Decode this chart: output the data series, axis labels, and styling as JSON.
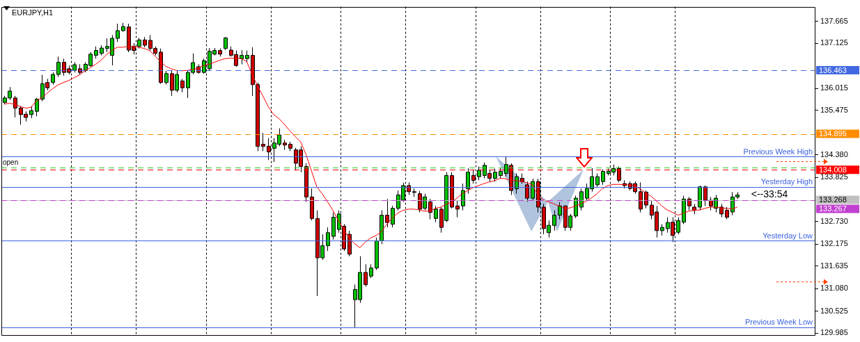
{
  "chart_data": {
    "type": "candlestick",
    "title": "EURJPY,H1",
    "categories": [
      null,
      null,
      null,
      null,
      null,
      null,
      null,
      null,
      null,
      null,
      null,
      null,
      null,
      null,
      null,
      null,
      null,
      null,
      null,
      null,
      null,
      null,
      null,
      null,
      null,
      null,
      null,
      null,
      null,
      null,
      null,
      null,
      null,
      null,
      null,
      null,
      null,
      null,
      null,
      null,
      null,
      null,
      null,
      null,
      null,
      null,
      null,
      null,
      null,
      null,
      null,
      null,
      null,
      null,
      null,
      null,
      null,
      null,
      null,
      null,
      null,
      null,
      null,
      null,
      null,
      null,
      null,
      null,
      null,
      null,
      null,
      null,
      null,
      null,
      null,
      null,
      null,
      null,
      null,
      null,
      null,
      null,
      null,
      null,
      null,
      null,
      null,
      null,
      null,
      null,
      null,
      null,
      null,
      null,
      null,
      null,
      null,
      null,
      null,
      null,
      null,
      null,
      null,
      null,
      null,
      null,
      null,
      null,
      null,
      null,
      null,
      null,
      null,
      null,
      null,
      null,
      null,
      null,
      null,
      null,
      null,
      null,
      null,
      null,
      null,
      null,
      null,
      null,
      null,
      null,
      null,
      null,
      null,
      null,
      null,
      null,
      null
    ],
    "ohlc": [
      [
        135.67,
        135.83,
        135.62,
        135.78
      ],
      [
        135.78,
        136.05,
        135.73,
        135.95
      ],
      [
        135.78,
        135.83,
        135.3,
        135.53
      ],
      [
        135.53,
        135.58,
        135.12,
        135.37
      ],
      [
        135.38,
        135.45,
        135.2,
        135.3
      ],
      [
        135.37,
        135.58,
        135.28,
        135.47
      ],
      [
        135.45,
        135.78,
        135.33,
        135.75
      ],
      [
        135.75,
        136.35,
        135.7,
        136.13
      ],
      [
        136.16,
        136.25,
        135.97,
        136.03
      ],
      [
        136.16,
        136.41,
        136.11,
        136.36
      ],
      [
        136.36,
        136.8,
        136.3,
        136.66
      ],
      [
        136.66,
        136.75,
        136.33,
        136.41
      ],
      [
        136.5,
        136.58,
        136.36,
        136.41
      ],
      [
        136.46,
        136.66,
        136.41,
        136.6
      ],
      [
        136.5,
        136.61,
        136.36,
        136.41
      ],
      [
        136.46,
        136.66,
        136.41,
        136.61
      ],
      [
        136.58,
        136.91,
        136.55,
        136.86
      ],
      [
        136.83,
        137.05,
        136.75,
        136.95
      ],
      [
        136.88,
        137.08,
        136.83,
        137.01
      ],
      [
        137.0,
        137.25,
        136.91,
        137.05
      ],
      [
        136.83,
        137.33,
        136.58,
        137.25
      ],
      [
        137.25,
        137.61,
        137.16,
        137.44
      ],
      [
        137.44,
        137.63,
        137.41,
        137.54
      ],
      [
        137.53,
        137.61,
        136.91,
        136.96
      ],
      [
        137.05,
        137.13,
        136.85,
        136.95
      ],
      [
        137.05,
        137.26,
        137.0,
        137.21
      ],
      [
        137.21,
        137.28,
        137.03,
        137.08
      ],
      [
        137.2,
        137.33,
        136.95,
        137.0
      ],
      [
        137.0,
        137.05,
        136.83,
        136.88
      ],
      [
        136.91,
        137.0,
        136.13,
        136.16
      ],
      [
        136.16,
        136.45,
        136.11,
        136.38
      ],
      [
        136.38,
        136.45,
        135.83,
        135.97
      ],
      [
        135.97,
        136.46,
        135.92,
        136.36
      ],
      [
        136.2,
        136.25,
        135.92,
        136.03
      ],
      [
        136.03,
        136.46,
        135.78,
        136.41
      ],
      [
        136.41,
        136.88,
        136.36,
        136.65
      ],
      [
        136.55,
        136.61,
        136.38,
        136.41
      ],
      [
        136.41,
        136.75,
        136.38,
        136.7
      ],
      [
        136.5,
        137.01,
        136.45,
        136.93
      ],
      [
        136.86,
        137.01,
        136.83,
        136.95
      ],
      [
        136.95,
        137.0,
        136.8,
        136.86
      ],
      [
        137.0,
        137.28,
        136.96,
        137.26
      ],
      [
        136.96,
        137.05,
        136.8,
        136.83
      ],
      [
        136.85,
        136.95,
        136.55,
        136.58
      ],
      [
        136.75,
        136.96,
        136.61,
        136.83
      ],
      [
        136.75,
        136.95,
        136.66,
        136.83
      ],
      [
        136.83,
        137.03,
        135.83,
        136.11
      ],
      [
        136.11,
        136.16,
        134.47,
        134.59
      ],
      [
        134.64,
        134.92,
        134.47,
        134.59
      ],
      [
        134.59,
        134.79,
        134.25,
        134.45
      ],
      [
        134.54,
        134.79,
        134.2,
        134.67
      ],
      [
        134.64,
        135.03,
        134.59,
        134.87
      ],
      [
        134.67,
        134.75,
        134.5,
        134.62
      ],
      [
        134.64,
        134.7,
        134.47,
        134.54
      ],
      [
        134.5,
        134.55,
        134.0,
        134.17
      ],
      [
        134.5,
        134.59,
        133.95,
        134.09
      ],
      [
        134.09,
        134.17,
        133.22,
        133.34
      ],
      [
        133.34,
        133.55,
        132.76,
        132.81
      ],
      [
        132.81,
        133.01,
        130.9,
        131.84
      ],
      [
        131.84,
        132.42,
        131.79,
        132.14
      ],
      [
        132.14,
        132.59,
        132.01,
        132.46
      ],
      [
        132.37,
        132.96,
        132.29,
        132.84
      ],
      [
        132.54,
        133.01,
        132.46,
        132.92
      ],
      [
        132.62,
        132.67,
        132.01,
        132.06
      ],
      [
        132.42,
        132.51,
        131.88,
        131.93
      ],
      [
        130.81,
        131.18,
        130.13,
        131.06
      ],
      [
        130.81,
        131.88,
        130.73,
        131.48
      ],
      [
        131.48,
        131.68,
        131.13,
        131.18
      ],
      [
        131.39,
        131.68,
        131.34,
        131.59
      ],
      [
        131.59,
        132.34,
        131.54,
        132.26
      ],
      [
        132.26,
        133.01,
        132.18,
        132.89
      ],
      [
        132.89,
        133.29,
        132.59,
        132.71
      ],
      [
        132.67,
        133.12,
        132.59,
        133.06
      ],
      [
        133.06,
        133.5,
        133.01,
        133.39
      ],
      [
        133.26,
        133.69,
        133.22,
        133.62
      ],
      [
        133.62,
        133.7,
        133.39,
        133.47
      ],
      [
        133.47,
        133.55,
        133.34,
        133.46
      ],
      [
        133.42,
        133.49,
        132.96,
        133.04
      ],
      [
        133.06,
        133.42,
        133.01,
        133.34
      ],
      [
        133.22,
        133.29,
        132.79,
        132.96
      ],
      [
        132.81,
        133.12,
        132.72,
        133.04
      ],
      [
        133.04,
        133.09,
        132.46,
        132.59
      ],
      [
        132.76,
        133.95,
        132.72,
        133.87
      ],
      [
        133.87,
        133.95,
        133.06,
        133.09
      ],
      [
        133.12,
        133.26,
        132.84,
        133.04
      ],
      [
        133.12,
        133.67,
        133.01,
        133.5
      ],
      [
        133.54,
        134.05,
        133.42,
        133.95
      ],
      [
        133.87,
        134.0,
        133.67,
        133.75
      ],
      [
        133.84,
        134.09,
        133.75,
        134.0
      ],
      [
        133.87,
        134.19,
        133.8,
        134.12
      ],
      [
        133.92,
        134.0,
        133.72,
        133.8
      ],
      [
        133.8,
        134.04,
        133.72,
        133.95
      ],
      [
        133.87,
        134.05,
        133.79,
        133.97
      ],
      [
        133.92,
        134.34,
        133.84,
        134.14
      ],
      [
        134.12,
        134.17,
        133.39,
        133.5
      ],
      [
        133.54,
        133.92,
        133.42,
        133.84
      ],
      [
        133.8,
        133.92,
        133.67,
        133.72
      ],
      [
        133.64,
        133.72,
        133.22,
        133.31
      ],
      [
        133.31,
        133.79,
        133.26,
        133.72
      ],
      [
        133.72,
        133.79,
        132.96,
        133.09
      ],
      [
        133.09,
        133.17,
        132.42,
        132.56
      ],
      [
        132.46,
        132.76,
        132.34,
        132.64
      ],
      [
        132.64,
        133.01,
        132.51,
        132.89
      ],
      [
        132.89,
        133.21,
        132.79,
        133.12
      ],
      [
        133.12,
        133.12,
        132.51,
        132.59
      ],
      [
        132.59,
        132.92,
        132.51,
        132.87
      ],
      [
        132.87,
        133.37,
        132.82,
        133.31
      ],
      [
        133.09,
        133.55,
        133.01,
        133.47
      ],
      [
        133.31,
        133.67,
        133.26,
        133.55
      ],
      [
        133.54,
        134.05,
        133.47,
        133.84
      ],
      [
        133.64,
        133.92,
        133.59,
        133.84
      ],
      [
        133.72,
        134.02,
        133.64,
        133.97
      ],
      [
        133.92,
        134.04,
        133.87,
        133.97
      ],
      [
        133.95,
        134.14,
        133.87,
        134.04
      ],
      [
        134.04,
        134.09,
        133.7,
        133.75
      ],
      [
        133.67,
        133.75,
        133.55,
        133.62
      ],
      [
        133.67,
        133.72,
        133.5,
        133.55
      ],
      [
        133.67,
        133.72,
        133.42,
        133.47
      ],
      [
        133.47,
        133.7,
        132.96,
        133.04
      ],
      [
        133.46,
        133.5,
        133.06,
        133.14
      ],
      [
        133.14,
        133.26,
        132.79,
        132.89
      ],
      [
        132.97,
        133.12,
        132.34,
        132.51
      ],
      [
        132.51,
        132.67,
        132.39,
        132.59
      ],
      [
        132.56,
        132.84,
        132.46,
        132.71
      ],
      [
        132.72,
        132.84,
        132.23,
        132.39
      ],
      [
        132.47,
        132.84,
        132.42,
        132.76
      ],
      [
        132.72,
        133.37,
        132.67,
        133.29
      ],
      [
        133.29,
        133.34,
        133.01,
        133.12
      ],
      [
        133.09,
        133.17,
        132.92,
        133.01
      ],
      [
        133.09,
        133.62,
        133.01,
        133.59
      ],
      [
        133.59,
        133.62,
        133.12,
        133.26
      ],
      [
        133.26,
        133.34,
        133.01,
        133.12
      ],
      [
        133.06,
        133.39,
        132.96,
        133.31
      ],
      [
        133.09,
        133.17,
        132.84,
        132.92
      ],
      [
        133.01,
        133.09,
        132.79,
        132.84
      ],
      [
        132.97,
        133.46,
        132.89,
        133.34
      ],
      [
        133.34,
        133.46,
        133.29,
        133.39
      ]
    ],
    "series": [
      {
        "type": "line",
        "color": "#ff0000",
        "values": [
          135.63,
          135.65,
          135.62,
          135.57,
          135.53,
          135.55,
          135.71,
          135.78,
          135.9,
          136.01,
          136.1,
          136.16,
          136.21,
          136.28,
          136.35,
          136.45,
          136.53,
          136.61,
          136.71,
          136.85,
          136.95,
          137.03,
          137.03,
          137.05,
          137.05,
          137.03,
          137.0,
          136.95,
          136.81,
          136.68,
          136.56,
          136.5,
          136.46,
          136.45,
          136.46,
          136.48,
          136.51,
          136.58,
          136.61,
          136.66,
          136.71,
          136.75,
          136.76,
          136.76,
          136.75,
          136.68,
          136.36,
          136.08,
          135.83,
          135.57,
          135.37,
          135.27,
          135.13,
          134.97,
          134.83,
          134.7,
          134.39,
          133.99,
          133.59,
          133.42,
          133.22,
          133.01,
          132.76,
          132.54,
          132.33,
          132.19,
          132.09,
          132.23,
          132.33,
          132.39,
          132.49,
          132.67,
          132.82,
          132.94,
          133.01,
          133.04,
          133.04,
          133.02,
          132.99,
          132.99,
          133.06,
          133.09,
          133.16,
          133.21,
          133.31,
          133.42,
          133.5,
          133.57,
          133.62,
          133.67,
          133.71,
          133.74,
          133.8,
          133.79,
          133.75,
          133.74,
          133.72,
          133.69,
          133.64,
          133.39,
          133.27,
          133.22,
          133.17,
          133.11,
          133.06,
          133.07,
          133.12,
          133.17,
          133.24,
          133.32,
          133.42,
          133.55,
          133.62,
          133.65,
          133.65,
          133.64,
          133.64,
          133.62,
          133.54,
          133.44,
          133.36,
          133.24,
          133.12,
          133.02,
          132.96,
          132.89,
          132.94,
          132.99,
          133.01,
          133.02,
          133.06,
          133.09,
          133.09,
          133.07,
          133.06,
          133.04,
          133.09
        ]
      }
    ],
    "ylim": [
      129.93,
      138.03
    ],
    "yticks": [
      137.665,
      137.125,
      136.015,
      135.475,
      {
        "value": 134.38,
        "label": "134.380"
      },
      133.825,
      {
        "value": 132.73,
        "label": "132.730"
      },
      132.175,
      131.635,
      {
        "value": 131.08,
        "label": "131.080"
      },
      130.525,
      129.985
    ],
    "ref_lines": [
      {
        "axis": "y",
        "value": 136.463,
        "label": "136.463",
        "color": "#4169e1",
        "line_style": "dashed"
      },
      {
        "axis": "y",
        "value": 134.895,
        "label": "134.895",
        "color": "#ff8c00",
        "line_style": "dashed"
      },
      {
        "axis": "y",
        "value": 134.07,
        "color": "#32cd32",
        "line_style": "dashed"
      },
      {
        "axis": "y",
        "value": 134.008,
        "label": "134.008",
        "color": "#ff0000",
        "line_style": "dashed"
      },
      {
        "axis": "y",
        "value": 133.268,
        "label": "133.268",
        "color": "#c0c0c0",
        "line_style": "solid"
      },
      {
        "axis": "y",
        "value": 133.267,
        "label": "133.267",
        "color": "#c040d0",
        "line_style": "dashed"
      },
      {
        "axis": "y",
        "value": 134.34,
        "label": "Previous Week High",
        "color": "#3b62e0",
        "line_style": "solid"
      },
      {
        "axis": "y",
        "value": 133.59,
        "label": "Yesterday High",
        "color": "#3b62e0",
        "line_style": "solid"
      },
      {
        "axis": "y",
        "value": 132.26,
        "label": "Yesterday Low",
        "color": "#3b62e0",
        "line_style": "solid"
      },
      {
        "axis": "y",
        "value": 130.13,
        "label": "Previous Week Low",
        "color": "#3b62e0",
        "line_style": "solid"
      }
    ],
    "annotations": [
      {
        "text": "open",
        "y": 134.07
      },
      "<--33:54"
    ],
    "grid": "x",
    "tick_labels": "y"
  }
}
